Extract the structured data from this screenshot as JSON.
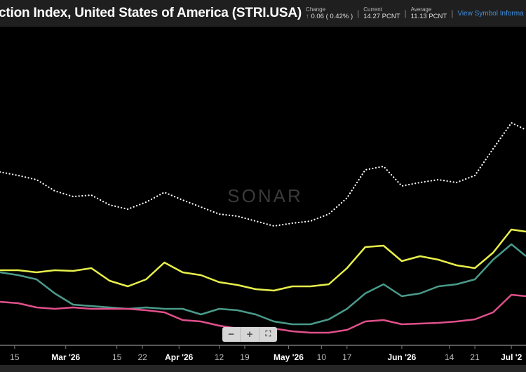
{
  "header": {
    "title": "ction Index, United States of America (STRI.USA)",
    "change_label": "Change",
    "change_arrow": "↑",
    "change_value": "0.06 ( 0.42% )",
    "current_label": "Current",
    "current_value": "14.27 PCNT",
    "average_label": "Average",
    "average_value": "11.13 PCNT",
    "link": "View Symbol Informa"
  },
  "watermark": "SONAR",
  "zoom_controls": {
    "minus": "−",
    "plus": "+",
    "fullscreen": "⛶"
  },
  "chart_data": {
    "type": "line",
    "background": "#000000",
    "grid": false,
    "y_axis_shown": false,
    "x": [
      "2026-02-11",
      "2026-02-16",
      "2026-02-21",
      "2026-02-26",
      "2026-03-03",
      "2026-03-08",
      "2026-03-13",
      "2026-03-18",
      "2026-03-23",
      "2026-03-28",
      "2026-04-02",
      "2026-04-07",
      "2026-04-12",
      "2026-04-17",
      "2026-04-22",
      "2026-04-27",
      "2026-05-02",
      "2026-05-07",
      "2026-05-12",
      "2026-05-17",
      "2026-05-22",
      "2026-05-27",
      "2026-06-01",
      "2026-06-06",
      "2026-06-11",
      "2026-06-16",
      "2026-06-21",
      "2026-06-26",
      "2026-07-01",
      "2026-07-05"
    ],
    "xlim": [
      "2026-02-11",
      "2026-07-05"
    ],
    "ylim": [
      0,
      22.6
    ],
    "x_ticks": [
      {
        "date": "2026-02-15",
        "label": "15",
        "major": false
      },
      {
        "date": "2026-03-01",
        "label": "Mar '26",
        "major": true
      },
      {
        "date": "2026-03-15",
        "label": "15",
        "major": false
      },
      {
        "date": "2026-03-22",
        "label": "22",
        "major": false
      },
      {
        "date": "2026-04-01",
        "label": "Apr '26",
        "major": true
      },
      {
        "date": "2026-04-12",
        "label": "12",
        "major": false
      },
      {
        "date": "2026-04-19",
        "label": "19",
        "major": false
      },
      {
        "date": "2026-05-01",
        "label": "May '26",
        "major": true
      },
      {
        "date": "2026-05-10",
        "label": "10",
        "major": false
      },
      {
        "date": "2026-05-17",
        "label": "17",
        "major": false
      },
      {
        "date": "2026-06-01",
        "label": "Jun '26",
        "major": true
      },
      {
        "date": "2026-06-14",
        "label": "14",
        "major": false
      },
      {
        "date": "2026-06-21",
        "label": "21",
        "major": false
      },
      {
        "date": "2026-07-01",
        "label": "Jul '2",
        "major": true
      }
    ],
    "series": [
      {
        "color": "#ffffff",
        "style": "dotted",
        "values": [
          12.25,
          12.0,
          11.7,
          10.9,
          10.5,
          10.6,
          9.9,
          9.6,
          10.1,
          10.8,
          10.25,
          9.75,
          9.25,
          9.1,
          8.75,
          8.4,
          8.6,
          8.75,
          9.25,
          10.4,
          12.4,
          12.65,
          11.25,
          11.5,
          11.7,
          11.5,
          12.0,
          13.9,
          15.75,
          15.25
        ]
      },
      {
        "color": "#e8f04a",
        "style": "solid",
        "values": [
          5.25,
          5.25,
          5.1,
          5.25,
          5.2,
          5.4,
          4.5,
          4.1,
          4.6,
          5.8,
          5.1,
          4.9,
          4.4,
          4.2,
          3.9,
          3.8,
          4.1,
          4.1,
          4.25,
          5.4,
          6.9,
          7.0,
          5.9,
          6.25,
          6.0,
          5.6,
          5.4,
          6.5,
          8.15,
          8.0
        ]
      },
      {
        "color": "#4a9a8a",
        "style": "solid",
        "values": [
          5.1,
          4.9,
          4.6,
          3.6,
          2.8,
          2.7,
          2.6,
          2.5,
          2.6,
          2.5,
          2.5,
          2.1,
          2.5,
          2.4,
          2.1,
          1.6,
          1.4,
          1.4,
          1.75,
          2.5,
          3.6,
          4.25,
          3.4,
          3.6,
          4.1,
          4.25,
          4.6,
          6.0,
          7.1,
          6.25
        ]
      },
      {
        "color": "#e0508a",
        "style": "solid",
        "values": [
          3.0,
          2.9,
          2.6,
          2.5,
          2.6,
          2.5,
          2.5,
          2.5,
          2.4,
          2.25,
          1.7,
          1.6,
          1.3,
          1.1,
          1.0,
          1.1,
          0.9,
          0.8,
          0.8,
          1.0,
          1.6,
          1.7,
          1.4,
          1.45,
          1.5,
          1.6,
          1.75,
          2.25,
          3.5,
          3.4
        ]
      }
    ]
  }
}
